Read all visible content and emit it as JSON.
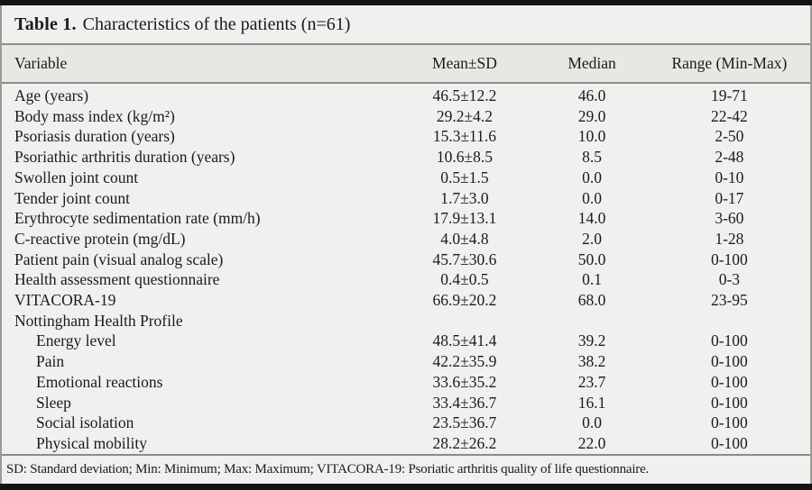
{
  "colors": {
    "background": "#f1f0ee",
    "header_band": "#e8e7e4",
    "rule": "#8c8c89",
    "bar": "#141414",
    "text": "#1b1b1b"
  },
  "table": {
    "title_label": "Table 1.",
    "title_text": "Characteristics of the patients (n=61)",
    "columns": [
      "Variable",
      "Mean±SD",
      "Median",
      "Range (Min-Max)"
    ],
    "rows": [
      {
        "variable": "Age (years)",
        "mean_sd": "46.5±12.2",
        "median": "46.0",
        "range": "19-71",
        "indent": false
      },
      {
        "variable": "Body mass index (kg/m²)",
        "mean_sd": "29.2±4.2",
        "median": "29.0",
        "range": "22-42",
        "indent": false
      },
      {
        "variable": "Psoriasis duration (years)",
        "mean_sd": "15.3±11.6",
        "median": "10.0",
        "range": "2-50",
        "indent": false
      },
      {
        "variable": "Psoriathic arthritis duration (years)",
        "mean_sd": "10.6±8.5",
        "median": "8.5",
        "range": "2-48",
        "indent": false
      },
      {
        "variable": "Swollen joint count",
        "mean_sd": "0.5±1.5",
        "median": "0.0",
        "range": "0-10",
        "indent": false
      },
      {
        "variable": "Tender joint count",
        "mean_sd": "1.7±3.0",
        "median": "0.0",
        "range": "0-17",
        "indent": false
      },
      {
        "variable": "Erythrocyte sedimentation rate (mm/h)",
        "mean_sd": "17.9±13.1",
        "median": "14.0",
        "range": "3-60",
        "indent": false
      },
      {
        "variable": "C-reactive protein (mg/dL)",
        "mean_sd": "4.0±4.8",
        "median": "2.0",
        "range": "1-28",
        "indent": false
      },
      {
        "variable": "Patient pain (visual analog scale)",
        "mean_sd": "45.7±30.6",
        "median": "50.0",
        "range": "0-100",
        "indent": false
      },
      {
        "variable": "Health assessment questionnaire",
        "mean_sd": "0.4±0.5",
        "median": "0.1",
        "range": "0-3",
        "indent": false
      },
      {
        "variable": "VITACORA-19",
        "mean_sd": "66.9±20.2",
        "median": "68.0",
        "range": "23-95",
        "indent": false
      },
      {
        "variable": "Nottingham Health Profile",
        "mean_sd": "",
        "median": "",
        "range": "",
        "indent": false
      },
      {
        "variable": "Energy level",
        "mean_sd": "48.5±41.4",
        "median": "39.2",
        "range": "0-100",
        "indent": true
      },
      {
        "variable": "Pain",
        "mean_sd": "42.2±35.9",
        "median": "38.2",
        "range": "0-100",
        "indent": true
      },
      {
        "variable": "Emotional reactions",
        "mean_sd": "33.6±35.2",
        "median": "23.7",
        "range": "0-100",
        "indent": true
      },
      {
        "variable": "Sleep",
        "mean_sd": "33.4±36.7",
        "median": "16.1",
        "range": "0-100",
        "indent": true
      },
      {
        "variable": "Social isolation",
        "mean_sd": "23.5±36.7",
        "median": "0.0",
        "range": "0-100",
        "indent": true
      },
      {
        "variable": "Physical mobility",
        "mean_sd": "28.2±26.2",
        "median": "22.0",
        "range": "0-100",
        "indent": true
      }
    ],
    "footnote": "SD: Standard deviation; Min: Minimum; Max: Maximum; VITACORA-19: Psoriatic arthritis quality of life questionnaire."
  }
}
